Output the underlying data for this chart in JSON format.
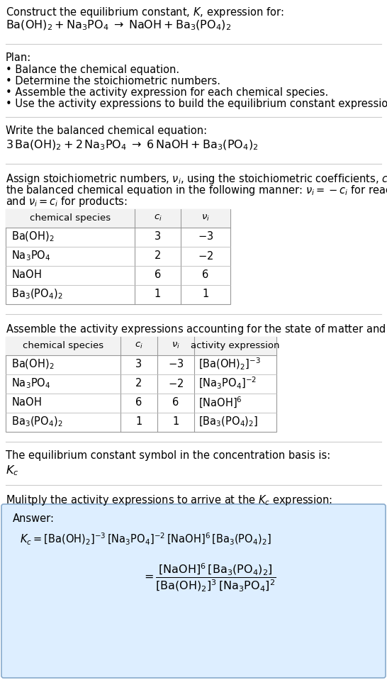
{
  "title_line1": "Construct the equilibrium constant, $K$, expression for:",
  "title_line2": "$\\mathrm{Ba(OH)_2 + Na_3PO_4 \\;\\rightarrow\\; NaOH + Ba_3(PO_4)_2}$",
  "plan_header": "Plan:",
  "plan_items": [
    "\\bullet  Balance the chemical equation.",
    "\\bullet  Determine the stoichiometric numbers.",
    "\\bullet  Assemble the activity expression for each chemical species.",
    "\\bullet  Use the activity expressions to build the equilibrium constant expression."
  ],
  "balanced_header": "Write the balanced chemical equation:",
  "balanced_eq": "$3\\,\\mathrm{Ba(OH)_2} + 2\\,\\mathrm{Na_3PO_4} \\;\\rightarrow\\; 6\\,\\mathrm{NaOH} + \\mathrm{Ba_3(PO_4)_2}$",
  "stoich_text_lines": [
    "Assign stoichiometric numbers, $\\nu_i$, using the stoichiometric coefficients, $c_i$, from",
    "the balanced chemical equation in the following manner: $\\nu_i = -c_i$ for reactants",
    "and $\\nu_i = c_i$ for products:"
  ],
  "table1_cols": [
    "chemical species",
    "$c_i$",
    "$\\nu_i$"
  ],
  "table1_rows": [
    [
      "$\\mathrm{Ba(OH)_2}$",
      "3",
      "$-3$"
    ],
    [
      "$\\mathrm{Na_3PO_4}$",
      "2",
      "$-2$"
    ],
    [
      "$\\mathrm{NaOH}$",
      "6",
      "6"
    ],
    [
      "$\\mathrm{Ba_3(PO_4)_2}$",
      "1",
      "1"
    ]
  ],
  "activity_header": "Assemble the activity expressions accounting for the state of matter and $\\nu_i$:",
  "table2_cols": [
    "chemical species",
    "$c_i$",
    "$\\nu_i$",
    "activity expression"
  ],
  "table2_rows": [
    [
      "$\\mathrm{Ba(OH)_2}$",
      "3",
      "$-3$",
      "$[\\mathrm{Ba(OH)_2}]^{-3}$"
    ],
    [
      "$\\mathrm{Na_3PO_4}$",
      "2",
      "$-2$",
      "$[\\mathrm{Na_3PO_4}]^{-2}$"
    ],
    [
      "$\\mathrm{NaOH}$",
      "6",
      "6",
      "$[\\mathrm{NaOH}]^{6}$"
    ],
    [
      "$\\mathrm{Ba_3(PO_4)_2}$",
      "1",
      "1",
      "$[\\mathrm{Ba_3(PO_4)_2}]$"
    ]
  ],
  "kc_header": "The equilibrium constant symbol in the concentration basis is:",
  "kc_symbol": "$K_c$",
  "multiply_header": "Mulitply the activity expressions to arrive at the $K_c$ expression:",
  "answer_label": "Answer:",
  "answer_eq1": "$K_c = [\\mathrm{Ba(OH)_2}]^{-3}\\,[\\mathrm{Na_3PO_4}]^{-2}\\,[\\mathrm{NaOH}]^{6}\\,[\\mathrm{Ba_3(PO_4)_2}]$",
  "answer_eq2": "$= \\dfrac{[\\mathrm{NaOH}]^{6}\\,[\\mathrm{Ba_3(PO_4)_2}]}{[\\mathrm{Ba(OH)_2}]^{3}\\,[\\mathrm{Na_3PO_4}]^{2}}$",
  "bg_color": "#ffffff",
  "sep_color": "#cccccc",
  "table_border_color": "#999999",
  "table_row_sep_color": "#bbbbbb",
  "answer_bg": "#ddeeff",
  "answer_border": "#88aacc",
  "font_size": 10.5,
  "small_font": 9.5
}
